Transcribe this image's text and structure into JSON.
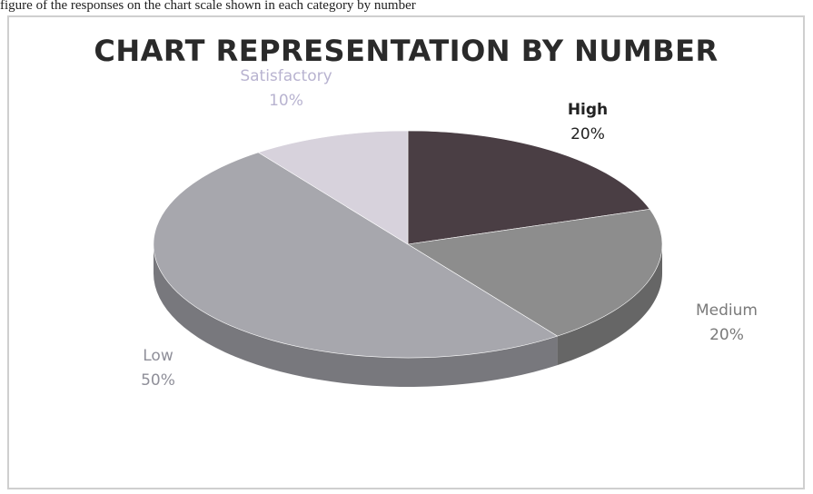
{
  "caption": {
    "text": "figure of the responses on the chart scale shown in each category by number"
  },
  "chart_data": {
    "type": "pie",
    "title": "CHART REPRESENTATION BY NUMBER",
    "categories": [
      "High",
      "Medium",
      "Low",
      "Satisfactory"
    ],
    "values": [
      20,
      20,
      50,
      10
    ],
    "labels": [
      "20%",
      "20%",
      "50%",
      "10%"
    ],
    "legend": "none",
    "style": "3d",
    "colors": {
      "High": "#4a3e44",
      "Medium": "#8d8d8d",
      "Low": "#a7a7ad",
      "Satisfactory": "#d7d2dc"
    },
    "label_colors": {
      "High": "#222222",
      "Medium": "#7a7a7a",
      "Low": "#8f8f99",
      "Satisfactory": "#b8b3d0"
    }
  }
}
